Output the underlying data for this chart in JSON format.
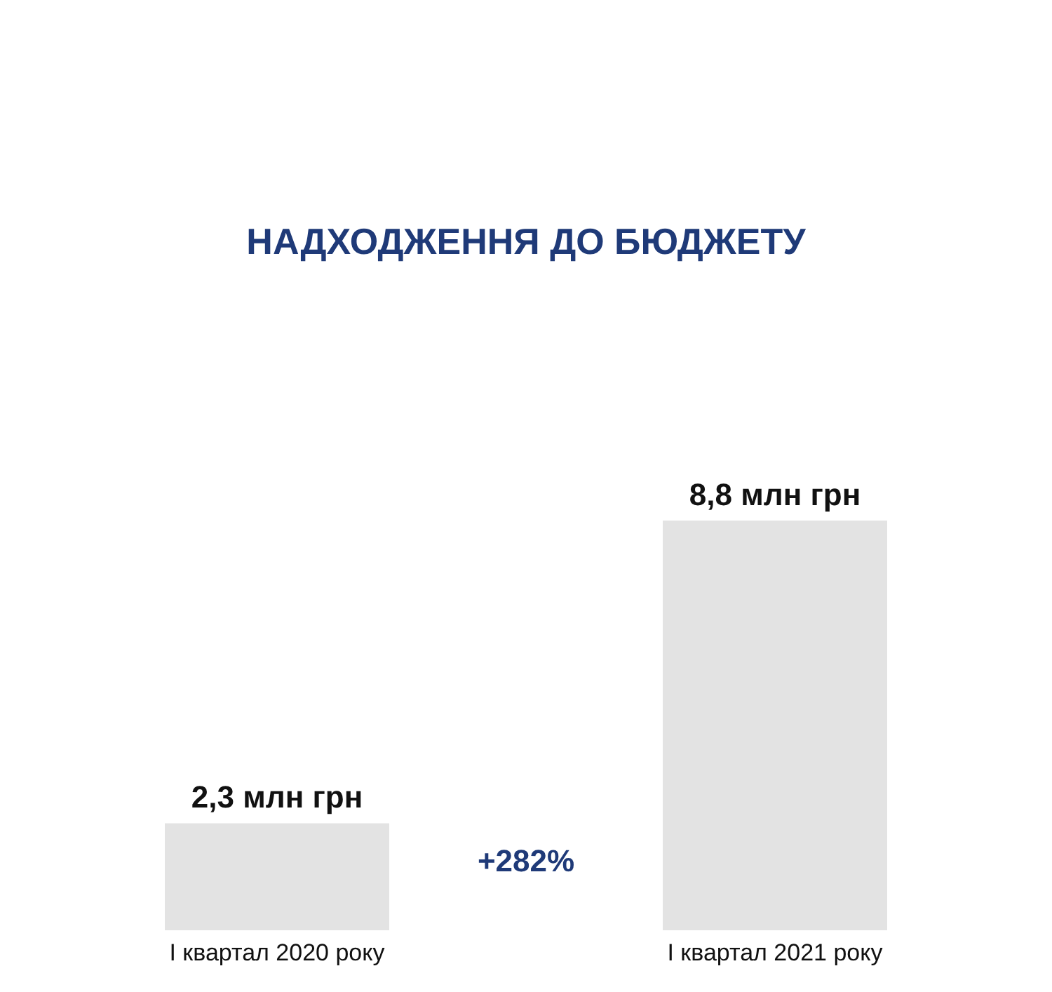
{
  "chart_data": {
    "type": "bar",
    "title": "НАДХОДЖЕННЯ ДО БЮДЖЕТУ",
    "categories": [
      "I квартал 2020 року",
      "I квартал 2021 року"
    ],
    "values": [
      2.3,
      8.8
    ],
    "value_labels": [
      "2,3 млн грн",
      "8,8 млн грн"
    ],
    "color": "#e3e3e3",
    "annotations": [
      "+282%"
    ],
    "grid": false
  }
}
